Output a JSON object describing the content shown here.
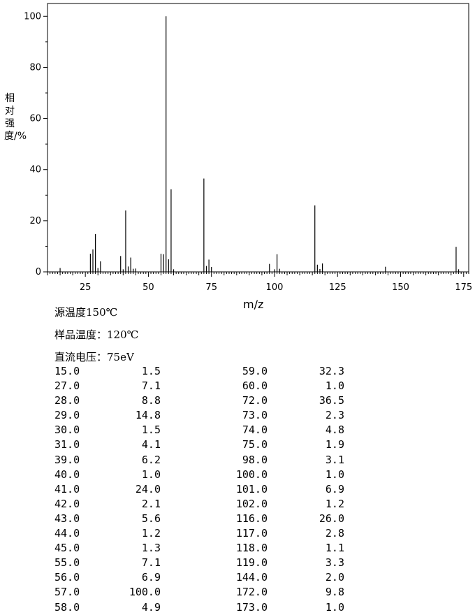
{
  "chart_data": {
    "type": "bar",
    "xlabel": "m/z",
    "ylabel": "相对强度/%",
    "xlim": [
      10,
      177
    ],
    "ylim": [
      0,
      105
    ],
    "xticks": [
      25,
      50,
      75,
      100,
      125,
      150,
      175
    ],
    "yticks": [
      0,
      20,
      40,
      60,
      80,
      100
    ],
    "grid": false,
    "x": [
      15,
      27,
      28,
      29,
      30,
      31,
      39,
      40,
      41,
      42,
      43,
      44,
      45,
      55,
      56,
      57,
      58,
      59,
      60,
      72,
      73,
      74,
      75,
      98,
      100,
      101,
      102,
      116,
      117,
      118,
      119,
      144,
      172,
      173
    ],
    "values": [
      1.5,
      7.1,
      8.8,
      14.8,
      1.5,
      4.1,
      6.2,
      1.0,
      24.0,
      2.1,
      5.6,
      1.2,
      1.3,
      7.1,
      6.9,
      100.0,
      4.9,
      32.3,
      1.0,
      36.5,
      2.3,
      4.8,
      1.9,
      3.1,
      1.0,
      6.9,
      1.2,
      26.0,
      2.8,
      1.1,
      3.3,
      2.0,
      9.8,
      1.0
    ]
  },
  "conditions": {
    "source_temp": "源温度150℃",
    "sample_temp": "样品温度：120℃",
    "voltage": "直流电压：75eV"
  },
  "table": {
    "rows": [
      [
        "15.0",
        "1.5",
        "59.0",
        "32.3"
      ],
      [
        "27.0",
        "7.1",
        "60.0",
        "1.0"
      ],
      [
        "28.0",
        "8.8",
        "72.0",
        "36.5"
      ],
      [
        "29.0",
        "14.8",
        "73.0",
        "2.3"
      ],
      [
        "30.0",
        "1.5",
        "74.0",
        "4.8"
      ],
      [
        "31.0",
        "4.1",
        "75.0",
        "1.9"
      ],
      [
        "39.0",
        "6.2",
        "98.0",
        "3.1"
      ],
      [
        "40.0",
        "1.0",
        "100.0",
        "1.0"
      ],
      [
        "41.0",
        "24.0",
        "101.0",
        "6.9"
      ],
      [
        "42.0",
        "2.1",
        "102.0",
        "1.2"
      ],
      [
        "43.0",
        "5.6",
        "116.0",
        "26.0"
      ],
      [
        "44.0",
        "1.2",
        "117.0",
        "2.8"
      ],
      [
        "45.0",
        "1.3",
        "118.0",
        "1.1"
      ],
      [
        "55.0",
        "7.1",
        "119.0",
        "3.3"
      ],
      [
        "56.0",
        "6.9",
        "144.0",
        "2.0"
      ],
      [
        "57.0",
        "100.0",
        "172.0",
        "9.8"
      ],
      [
        "58.0",
        "4.9",
        "173.0",
        "1.0"
      ]
    ]
  }
}
